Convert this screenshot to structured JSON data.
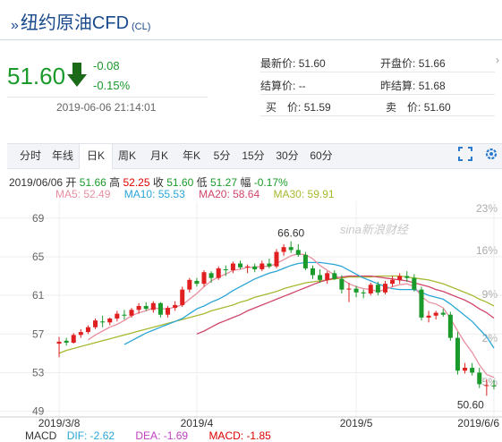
{
  "header": {
    "title": "纽约原油CFD",
    "title_suffix": "(CL)"
  },
  "quote": {
    "price": "51.60",
    "change": "-0.08",
    "change_pct": "-0.15%",
    "timestamp": "2019-06-06 21:14:01",
    "direction_color": "#1a9a2a",
    "fields": {
      "latest_label": "最新价:",
      "latest": "51.60",
      "open_label": "开盘价:",
      "open": "51.66",
      "settle_label": "结算价:",
      "settle": "--",
      "prev_settle_label": "昨结算:",
      "prev_settle": "51.68",
      "buy_label": "买　价:",
      "buy": "51.59",
      "sell_label": "卖　价:",
      "sell": "51.60"
    }
  },
  "tabs": [
    "分时",
    "年线",
    "日K",
    "周K",
    "月K",
    "年K",
    "5分",
    "15分",
    "30分",
    "60分"
  ],
  "active_tab": "日K",
  "ohlc": {
    "date": "2019/06/06",
    "open_label": "开",
    "open": "51.66",
    "high_label": "高",
    "high": "52.25",
    "close_label": "收",
    "close": "51.60",
    "low_label": "低",
    "low": "51.27",
    "amp_label": "幅",
    "amp": "-0.17%"
  },
  "ma": [
    {
      "label": "MA5: 52.49",
      "color": "#e88fa0"
    },
    {
      "label": "MA10: 55.53",
      "color": "#2aa6d6"
    },
    {
      "label": "MA20: 58.64",
      "color": "#d0456a"
    },
    {
      "label": "MA30: 59.91",
      "color": "#a8b830"
    }
  ],
  "watermark": "sina新浪财经",
  "macd": {
    "name": "MACD",
    "dif": "DIF: -2.62",
    "dea": "DEA: -1.69",
    "macd": "MACD: -1.85"
  },
  "chart_data": {
    "type": "candlestick",
    "y_ticks": [
      "69",
      "65",
      "61",
      "57",
      "53",
      "49"
    ],
    "y_ticks_right": [
      "23%",
      "16%",
      "9%",
      "2%",
      "-5%"
    ],
    "x_ticks": [
      "2019/3/8",
      "2019/4",
      "2019/5",
      "2019/6/6"
    ],
    "ylim": [
      48.5,
      70
    ],
    "annotations": {
      "max": "66.60",
      "min": "50.60"
    },
    "up_color": "#e02020",
    "down_color": "#1a9a2a",
    "candles": [
      [
        56.0,
        56.7,
        54.6,
        56.2
      ],
      [
        56.3,
        56.6,
        55.8,
        56.1
      ],
      [
        56.1,
        57.1,
        56.0,
        56.9
      ],
      [
        56.9,
        57.5,
        56.6,
        57.2
      ],
      [
        57.2,
        57.9,
        57.0,
        57.7
      ],
      [
        57.7,
        58.6,
        57.5,
        58.4
      ],
      [
        58.3,
        58.9,
        57.7,
        58.2
      ],
      [
        58.2,
        58.7,
        57.9,
        58.6
      ],
      [
        58.6,
        59.4,
        58.3,
        59.1
      ],
      [
        59.0,
        59.5,
        58.5,
        58.9
      ],
      [
        58.9,
        59.7,
        58.7,
        59.5
      ],
      [
        59.5,
        60.2,
        59.1,
        59.9
      ],
      [
        59.9,
        60.3,
        59.4,
        59.6
      ],
      [
        59.5,
        60.4,
        59.2,
        60.2
      ],
      [
        60.2,
        60.3,
        58.7,
        59.0
      ],
      [
        59.0,
        59.9,
        58.7,
        59.7
      ],
      [
        59.7,
        60.4,
        59.4,
        60.0
      ],
      [
        60.0,
        61.9,
        59.8,
        61.6
      ],
      [
        61.6,
        62.8,
        61.3,
        62.6
      ],
      [
        62.5,
        62.8,
        61.9,
        62.2
      ],
      [
        62.2,
        63.6,
        61.9,
        63.4
      ],
      [
        63.3,
        63.5,
        62.3,
        62.8
      ],
      [
        62.8,
        64.0,
        62.6,
        63.8
      ],
      [
        63.7,
        64.1,
        63.0,
        63.6
      ],
      [
        63.6,
        64.5,
        63.3,
        64.3
      ],
      [
        64.3,
        64.6,
        63.7,
        63.9
      ],
      [
        63.9,
        64.2,
        63.3,
        64.0
      ],
      [
        64.0,
        64.3,
        63.4,
        63.7
      ],
      [
        63.7,
        64.6,
        63.5,
        64.3
      ],
      [
        64.3,
        64.8,
        63.8,
        64.0
      ],
      [
        64.0,
        65.8,
        63.8,
        65.5
      ],
      [
        65.5,
        66.3,
        65.1,
        66.0
      ],
      [
        66.0,
        66.6,
        65.4,
        65.7
      ],
      [
        65.7,
        66.3,
        65.0,
        65.2
      ],
      [
        65.2,
        65.5,
        63.6,
        63.8
      ],
      [
        63.8,
        64.1,
        62.7,
        63.1
      ],
      [
        63.1,
        63.7,
        62.3,
        62.6
      ],
      [
        62.6,
        63.5,
        62.2,
        63.3
      ],
      [
        63.3,
        63.6,
        62.6,
        62.7
      ],
      [
        62.7,
        63.1,
        61.2,
        61.6
      ],
      [
        61.6,
        62.3,
        60.3,
        61.7
      ],
      [
        61.7,
        62.0,
        60.8,
        61.3
      ],
      [
        61.3,
        61.6,
        60.7,
        61.2
      ],
      [
        61.2,
        62.3,
        61.0,
        62.1
      ],
      [
        62.1,
        62.4,
        61.0,
        61.3
      ],
      [
        61.3,
        62.5,
        61.1,
        62.2
      ],
      [
        62.2,
        63.0,
        61.9,
        62.6
      ],
      [
        62.6,
        63.3,
        62.2,
        63.0
      ],
      [
        63.0,
        63.5,
        62.4,
        62.8
      ],
      [
        62.8,
        63.2,
        61.4,
        61.6
      ],
      [
        61.6,
        61.9,
        58.4,
        58.7
      ],
      [
        58.7,
        59.4,
        58.2,
        58.9
      ],
      [
        58.9,
        59.4,
        58.5,
        59.2
      ],
      [
        59.2,
        59.6,
        58.8,
        59.0
      ],
      [
        59.0,
        59.3,
        56.3,
        56.6
      ],
      [
        56.6,
        57.2,
        52.8,
        53.2
      ],
      [
        53.2,
        54.0,
        52.9,
        53.5
      ],
      [
        53.5,
        54.0,
        52.7,
        53.0
      ],
      [
        53.0,
        53.5,
        51.4,
        51.8
      ],
      [
        51.7,
        52.3,
        50.6,
        51.7
      ],
      [
        51.66,
        52.25,
        51.27,
        51.6
      ]
    ],
    "ma5": [
      null,
      null,
      null,
      null,
      56.4,
      56.9,
      57.3,
      57.7,
      58.0,
      58.4,
      58.9,
      59.2,
      59.4,
      59.7,
      59.6,
      59.6,
      59.8,
      60.0,
      60.6,
      61.2,
      61.9,
      62.5,
      62.9,
      63.2,
      63.6,
      63.7,
      63.9,
      63.9,
      64.0,
      64.0,
      64.3,
      64.7,
      65.1,
      65.3,
      65.2,
      64.8,
      64.1,
      63.6,
      63.1,
      62.7,
      62.2,
      61.9,
      61.7,
      61.6,
      61.4,
      61.6,
      61.9,
      62.1,
      62.2,
      61.9,
      60.9,
      60.3,
      60.1,
      59.7,
      58.6,
      57.3,
      56.1,
      55.1,
      53.8,
      52.8,
      52.49
    ],
    "ma10": [
      null,
      null,
      null,
      null,
      null,
      null,
      null,
      null,
      null,
      55.9,
      56.3,
      56.7,
      57.1,
      57.4,
      57.7,
      58.0,
      58.3,
      58.6,
      59.1,
      59.6,
      59.9,
      60.3,
      60.6,
      61.0,
      61.5,
      61.9,
      62.3,
      62.7,
      63.0,
      63.3,
      63.5,
      63.8,
      64.1,
      64.3,
      64.4,
      64.4,
      64.4,
      64.3,
      64.2,
      64.0,
      63.6,
      63.2,
      62.8,
      62.5,
      62.2,
      61.9,
      61.7,
      61.6,
      61.6,
      61.6,
      61.3,
      61.0,
      60.8,
      60.6,
      60.1,
      59.5,
      58.9,
      58.3,
      57.5,
      56.7,
      55.53
    ],
    "ma20": [
      null,
      null,
      null,
      null,
      null,
      null,
      null,
      null,
      null,
      null,
      null,
      null,
      null,
      null,
      null,
      null,
      null,
      null,
      null,
      57.0,
      57.3,
      57.7,
      58.1,
      58.4,
      58.7,
      59.0,
      59.4,
      59.7,
      60.0,
      60.3,
      60.6,
      60.9,
      61.2,
      61.5,
      61.8,
      62.1,
      62.4,
      62.6,
      62.8,
      62.9,
      63.0,
      63.0,
      63.0,
      63.0,
      62.9,
      62.8,
      62.7,
      62.6,
      62.5,
      62.3,
      62.1,
      61.9,
      61.6,
      61.4,
      61.1,
      60.8,
      60.5,
      60.1,
      59.6,
      59.2,
      58.64
    ],
    "ma30": [
      55.0,
      55.3,
      55.5,
      55.7,
      55.9,
      56.1,
      56.3,
      56.5,
      56.7,
      56.9,
      57.1,
      57.3,
      57.5,
      57.7,
      57.9,
      58.1,
      58.3,
      58.5,
      58.7,
      58.9,
      59.1,
      59.4,
      59.6,
      59.8,
      60.0,
      60.3,
      60.5,
      60.8,
      61.0,
      61.2,
      61.4,
      61.7,
      61.9,
      62.1,
      62.3,
      62.4,
      62.5,
      62.6,
      62.7,
      62.8,
      62.9,
      62.9,
      62.9,
      62.9,
      63.0,
      63.0,
      63.0,
      63.0,
      62.9,
      62.8,
      62.7,
      62.6,
      62.4,
      62.2,
      61.9,
      61.6,
      61.3,
      61.0,
      60.6,
      60.3,
      59.91
    ]
  }
}
